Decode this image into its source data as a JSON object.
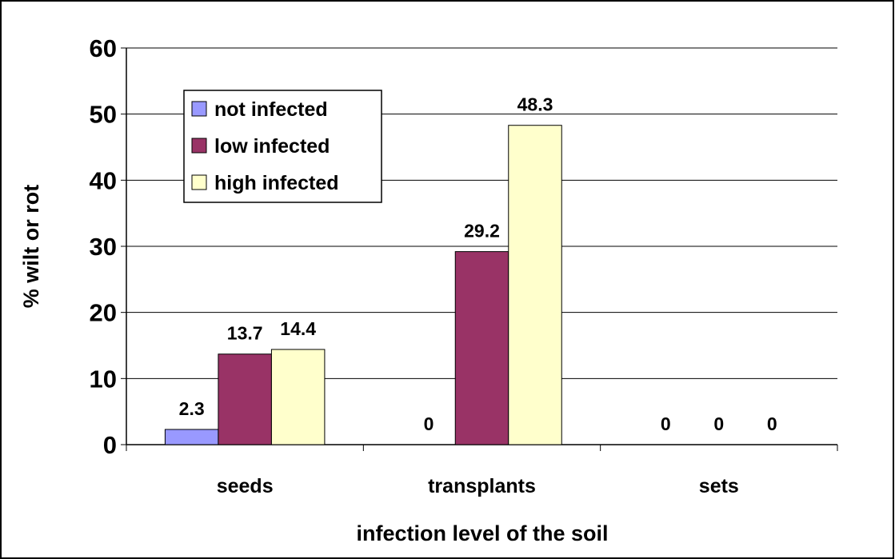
{
  "chart_data": {
    "type": "bar",
    "xlabel": "infection level of the soil",
    "ylabel": "% wilt or rot",
    "categories": [
      "seeds",
      "transplants",
      "sets"
    ],
    "series": [
      {
        "name": "not infected",
        "color": "#9999ff",
        "values": [
          2.3,
          0,
          0
        ]
      },
      {
        "name": "low infected",
        "color": "#993366",
        "values": [
          13.7,
          29.2,
          0
        ]
      },
      {
        "name": "high infected",
        "color": "#ffffcc",
        "values": [
          14.4,
          48.3,
          0
        ]
      }
    ],
    "ylim": [
      0,
      60
    ],
    "yticks": [
      0,
      10,
      20,
      30,
      40,
      50,
      60
    ],
    "grid": true,
    "legend": "upper left"
  }
}
